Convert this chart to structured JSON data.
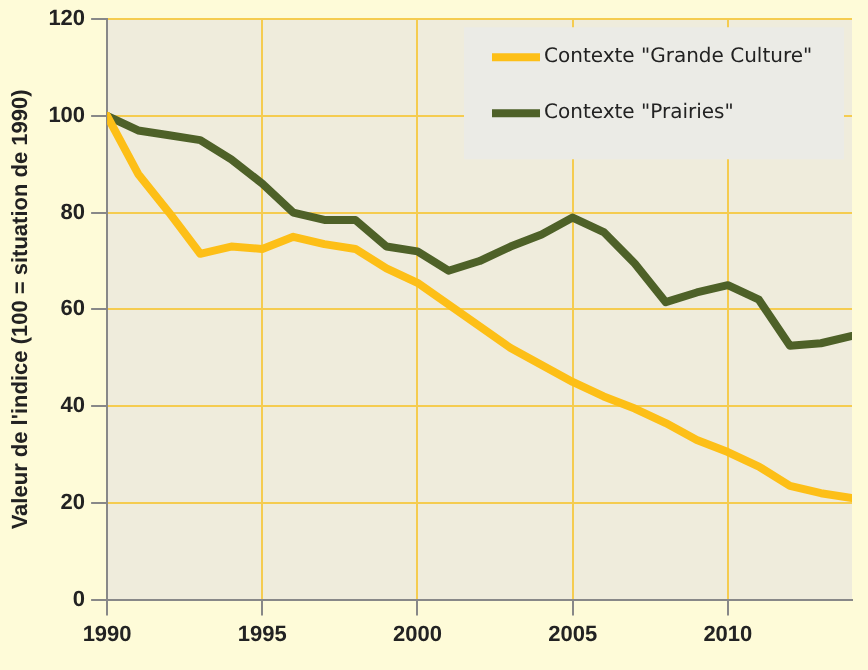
{
  "chart_data": {
    "type": "line",
    "ylabel": "Valeur de l'indice (100 = situation de 1990)",
    "x": [
      1990,
      1991,
      1992,
      1993,
      1994,
      1995,
      1996,
      1997,
      1998,
      1999,
      2000,
      2001,
      2002,
      2003,
      2004,
      2005,
      2006,
      2007,
      2008,
      2009,
      2010,
      2011,
      2012,
      2013,
      2014
    ],
    "series": [
      {
        "name": "Contexte \"Grande Culture\"",
        "color": "#fdbf17",
        "values": [
          100,
          88,
          80,
          71.5,
          73,
          72.5,
          75,
          73.5,
          72.5,
          68.5,
          65.5,
          61,
          56.5,
          52,
          48.5,
          45,
          42,
          39.5,
          36.5,
          33,
          30.5,
          27.5,
          23.5,
          22,
          21
        ]
      },
      {
        "name": "Contexte \"Prairies\"",
        "color": "#4e6128",
        "values": [
          100,
          97,
          96,
          95,
          91,
          86,
          80,
          78.5,
          78.5,
          73,
          72,
          68,
          70,
          73,
          75.5,
          79,
          76,
          69.5,
          61.5,
          63.5,
          65,
          62,
          52.5,
          53,
          54.5
        ]
      }
    ],
    "xlim": [
      1990,
      2014
    ],
    "xticks": [
      1990,
      1995,
      2000,
      2005,
      2010
    ],
    "ylim": [
      0,
      120
    ],
    "yticks": [
      0,
      20,
      40,
      60,
      80,
      100,
      120
    ],
    "grid": true,
    "legend": "top right",
    "marker": "none",
    "line_style": "solid"
  }
}
